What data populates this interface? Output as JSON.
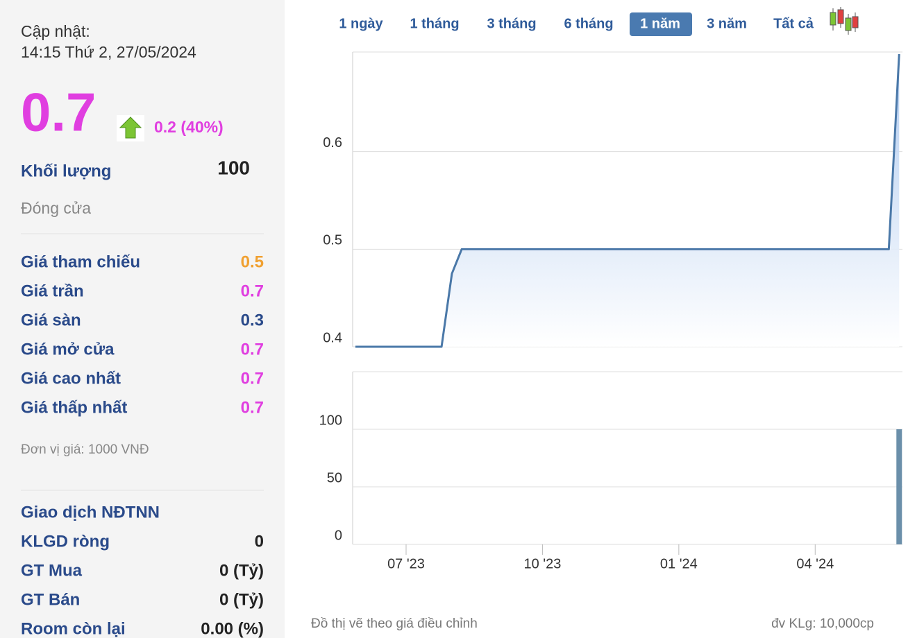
{
  "sidebar": {
    "update_label": "Cập nhật:",
    "update_time": "14:15 Thứ 2, 27/05/2024",
    "price": "0.7",
    "change": "0.2 (40%)",
    "volume_label": "Khối lượng",
    "volume": "100",
    "status": "Đóng cửa",
    "price_rows": [
      {
        "label": "Giá tham chiếu",
        "value": "0.5",
        "color": "#f0a030"
      },
      {
        "label": "Giá trần",
        "value": "0.7",
        "color": "#e03ee0"
      },
      {
        "label": "Giá sàn",
        "value": "0.3",
        "color": "#2a4a8a"
      },
      {
        "label": "Giá mở cửa",
        "value": "0.7",
        "color": "#e03ee0"
      },
      {
        "label": "Giá cao nhất",
        "value": "0.7",
        "color": "#e03ee0"
      },
      {
        "label": "Giá thấp nhất",
        "value": "0.7",
        "color": "#e03ee0"
      }
    ],
    "unit_note": "Đơn vị giá: 1000 VNĐ",
    "foreign_title": "Giao dịch NĐTNN",
    "foreign_rows": [
      {
        "label": "KLGD ròng",
        "value": "0"
      },
      {
        "label": "GT Mua",
        "value": "0 (Tỷ)"
      },
      {
        "label": "GT Bán",
        "value": "0 (Tỷ)"
      },
      {
        "label": "Room còn lại",
        "value": "0.00 (%)"
      }
    ]
  },
  "tabs": {
    "items": [
      "1 ngày",
      "1 tháng",
      "3 tháng",
      "6 tháng",
      "1 năm",
      "3 năm",
      "Tất cả"
    ],
    "active": 4
  },
  "price_chart": {
    "type": "line",
    "x": [
      2023.407,
      2023.565,
      2023.584,
      2023.602,
      2024.385,
      2024.404
    ],
    "values": [
      0.4,
      0.4,
      0.475,
      0.5,
      0.5,
      0.7
    ],
    "color": "#4a78a8",
    "xlim": [
      2023.402,
      2024.41
    ],
    "ylim": [
      0.4,
      0.7
    ],
    "yticks": [
      0.4,
      0.5,
      0.6
    ],
    "grid": true
  },
  "volume_chart": {
    "type": "bar",
    "x": [
      2024.404
    ],
    "values": [
      100
    ],
    "color": "#6b8faa",
    "xlim": [
      2023.402,
      2024.41
    ],
    "ylim": [
      0,
      150
    ],
    "yticks": [
      0,
      50,
      100
    ],
    "grid": true,
    "xticks": [
      {
        "value": 2023.5,
        "label": "07 '23"
      },
      {
        "value": 2023.75,
        "label": "10 '23"
      },
      {
        "value": 2024.0,
        "label": "01 '24"
      },
      {
        "value": 2024.25,
        "label": "04 '24"
      }
    ]
  },
  "footer": {
    "note": "Đồ thị vẽ theo giá điều chỉnh",
    "unit": "đv KLg: 10,000cp"
  }
}
